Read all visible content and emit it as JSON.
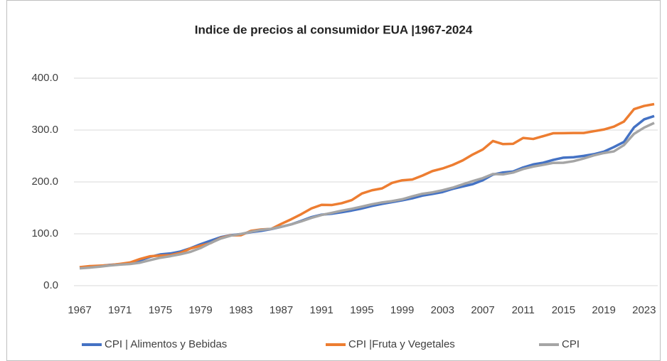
{
  "chart_data": {
    "type": "line",
    "title": "Indice de precios al consumidor EUA  |1967-2024",
    "x": [
      1967,
      1968,
      1969,
      1970,
      1971,
      1972,
      1973,
      1974,
      1975,
      1976,
      1977,
      1978,
      1979,
      1980,
      1981,
      1982,
      1983,
      1984,
      1985,
      1986,
      1987,
      1988,
      1989,
      1990,
      1991,
      1992,
      1993,
      1994,
      1995,
      1996,
      1997,
      1998,
      1999,
      2000,
      2001,
      2002,
      2003,
      2004,
      2005,
      2006,
      2007,
      2008,
      2009,
      2010,
      2011,
      2012,
      2013,
      2014,
      2015,
      2016,
      2017,
      2018,
      2019,
      2020,
      2021,
      2022,
      2023,
      2024
    ],
    "series": [
      {
        "name": "CPI | Alimentos y Bebidas",
        "color": "#4472c4",
        "values": [
          35.0,
          36.2,
          38.1,
          40.1,
          41.4,
          43.1,
          48.8,
          55.5,
          60.2,
          62.1,
          65.8,
          72.2,
          79.9,
          86.7,
          93.5,
          97.3,
          99.5,
          103.2,
          105.6,
          109.1,
          113.5,
          118.2,
          124.9,
          132.1,
          136.8,
          138.7,
          141.6,
          144.9,
          148.9,
          153.7,
          157.7,
          161.1,
          164.6,
          168.4,
          173.6,
          176.8,
          180.5,
          186.6,
          191.2,
          195.7,
          203.3,
          214.2,
          218.2,
          220.0,
          227.9,
          233.7,
          237.0,
          242.6,
          246.8,
          247.6,
          250.2,
          253.4,
          258.3,
          267.2,
          277.1,
          305.2,
          320.6,
          327.0
        ]
      },
      {
        "name": "CPI |Fruta y Vegetales",
        "color": "#ed7d31",
        "values": [
          35.6,
          37.7,
          38.5,
          39.5,
          41.9,
          44.7,
          51.5,
          56.7,
          58.1,
          58.8,
          63.2,
          71.7,
          76.9,
          82.1,
          92.0,
          97.0,
          97.3,
          105.7,
          108.4,
          109.4,
          119.1,
          128.1,
          138.0,
          149.0,
          155.8,
          155.4,
          159.0,
          165.0,
          177.7,
          183.9,
          187.5,
          198.2,
          203.1,
          204.6,
          212.2,
          220.9,
          225.9,
          232.7,
          241.4,
          252.9,
          262.6,
          278.9,
          272.9,
          273.5,
          284.7,
          282.8,
          288.3,
          293.9,
          294.0,
          294.4,
          294.3,
          297.7,
          301.0,
          306.6,
          316.4,
          340.3,
          346.5,
          350.0
        ]
      },
      {
        "name": "CPI",
        "color": "#a5a5a5",
        "values": [
          33.4,
          34.8,
          36.7,
          38.8,
          40.5,
          41.8,
          44.4,
          49.3,
          53.8,
          56.9,
          60.6,
          65.2,
          72.6,
          82.4,
          90.9,
          96.5,
          99.6,
          103.9,
          107.6,
          109.6,
          113.6,
          118.3,
          124.0,
          130.7,
          136.2,
          140.3,
          144.5,
          148.2,
          152.4,
          156.9,
          160.5,
          163.0,
          166.6,
          172.2,
          177.1,
          179.9,
          184.0,
          188.9,
          195.3,
          201.6,
          207.3,
          215.3,
          214.5,
          218.1,
          224.9,
          229.6,
          233.0,
          236.7,
          237.0,
          240.0,
          245.1,
          251.1,
          255.7,
          258.8,
          271.0,
          292.7,
          304.7,
          313.7
        ]
      }
    ],
    "xlim": [
      1967,
      2024
    ],
    "xticks": [
      1967,
      1971,
      1975,
      1979,
      1983,
      1987,
      1991,
      1995,
      1999,
      2003,
      2007,
      2011,
      2015,
      2019,
      2023
    ],
    "ylim": [
      0,
      400
    ],
    "yticks": [
      {
        "value": 0,
        "label": "0.0"
      },
      {
        "value": 100,
        "label": "100.0"
      },
      {
        "value": 200,
        "label": "200.0"
      },
      {
        "value": 300,
        "label": "300.0"
      },
      {
        "value": 400,
        "label": "400.0"
      }
    ],
    "grid": true,
    "legend": "bottom"
  }
}
